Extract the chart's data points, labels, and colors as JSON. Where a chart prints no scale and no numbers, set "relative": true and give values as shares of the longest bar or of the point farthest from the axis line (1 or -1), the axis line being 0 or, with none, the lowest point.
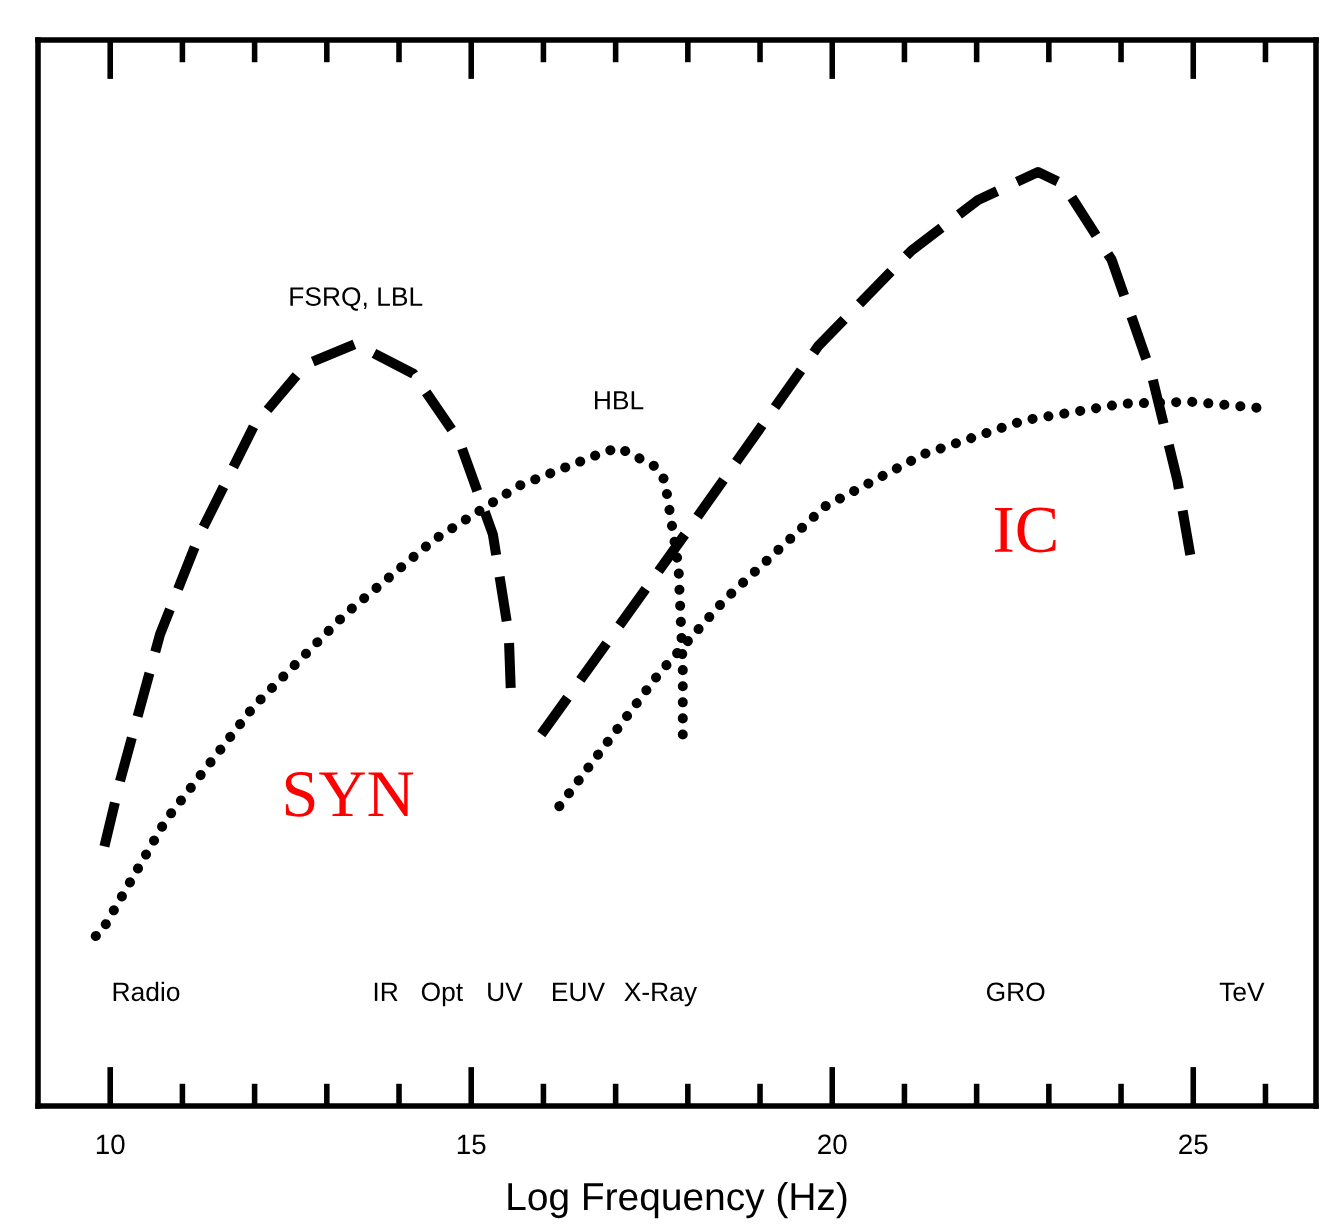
{
  "chart_data": {
    "type": "line",
    "relative": true,
    "xlabel": "Log Frequency (Hz)",
    "xlim": [
      9.0,
      26.7
    ],
    "xticks": [
      10,
      {
        "value": 11,
        "label": null
      },
      {
        "value": 12,
        "label": null
      },
      {
        "value": 13,
        "label": null
      },
      {
        "value": 14,
        "label": null
      },
      15,
      {
        "value": 16,
        "label": null
      },
      {
        "value": 17,
        "label": null
      },
      {
        "value": 18,
        "label": null
      },
      {
        "value": 19,
        "label": null
      },
      20,
      {
        "value": 21,
        "label": null
      },
      {
        "value": 22,
        "label": null
      },
      {
        "value": 23,
        "label": null
      },
      {
        "value": 24,
        "label": null
      },
      25,
      {
        "value": 26,
        "label": null
      }
    ],
    "grid": false,
    "legend": false,
    "marker": "none",
    "series": [
      {
        "name": "FSRQ, LBL",
        "color": "#000000",
        "line_style": "dashed",
        "x": [
          9.92,
          10.14,
          10.69,
          11.24,
          11.99,
          12.71,
          13.4,
          14.2,
          14.83,
          15.3,
          15.52,
          15.55,
          15.75,
          15.97,
          17.96,
          19.81,
          21.1,
          22.02,
          22.85,
          23.2,
          23.87,
          24.42,
          24.78,
          24.97
        ],
        "values": [
          0.278,
          0.349,
          0.505,
          0.612,
          0.728,
          0.794,
          0.816,
          0.784,
          0.713,
          0.612,
          0.505,
          0.441,
          null,
          0.398,
          0.612,
          0.814,
          0.916,
          0.97,
          1,
          0.987,
          0.906,
          0.784,
          0.67,
          0.585
        ]
      },
      {
        "name": "HBL",
        "color": "#000000",
        "line_style": "dotted",
        "x": [
          9.8,
          9.86,
          10.77,
          11.99,
          13.26,
          14.48,
          15.66,
          16.77,
          17.04,
          17.54,
          17.68,
          17.87,
          17.93,
          17.93,
          null,
          16.22,
          17.6,
          18.51,
          19.9,
          21.27,
          22.65,
          24.03,
          24.97,
          25.97
        ],
        "values": [
          0.182,
          0.184,
          0.306,
          0.428,
          0.527,
          0.606,
          0.664,
          0.698,
          0.705,
          0.685,
          0.67,
          0.578,
          0.471,
          0.388,
          null,
          0.321,
          0.463,
          0.542,
          0.642,
          0.698,
          0.734,
          0.752,
          0.754,
          0.747
        ]
      }
    ],
    "annotations": [
      "SYN",
      "IC",
      "Radio",
      "IR",
      "Opt",
      "UV",
      "EUV",
      "X-Ray",
      "GRO",
      "TeV"
    ]
  }
}
